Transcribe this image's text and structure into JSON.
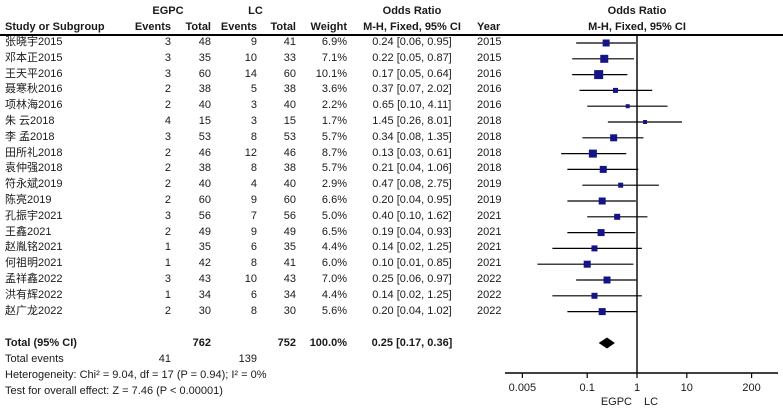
{
  "chart_data": {
    "type": "forest",
    "effect_measure": "Odds Ratio",
    "method": "M-H, Fixed, 95% CI",
    "groups": {
      "experimental": "EGPC",
      "control": "LC"
    },
    "headers": {
      "study": "Study or Subgroup",
      "events": "Events",
      "total": "Total",
      "weight": "Weight",
      "or_title": "Odds Ratio",
      "mh": "M-H, Fixed, 95% CI",
      "year": "Year"
    },
    "studies": [
      {
        "name": "张晓宇2015",
        "e1": "3",
        "t1": "48",
        "e2": "9",
        "t2": "41",
        "weight": "6.9%",
        "ci": "0.24 [0.06, 0.95]",
        "year": "2015",
        "or": 0.24,
        "lo": 0.06,
        "hi": 0.95,
        "w": 6.9
      },
      {
        "name": "邓本正2015",
        "e1": "3",
        "t1": "35",
        "e2": "10",
        "t2": "33",
        "weight": "7.1%",
        "ci": "0.22 [0.05, 0.87]",
        "year": "2015",
        "or": 0.22,
        "lo": 0.05,
        "hi": 0.87,
        "w": 7.1
      },
      {
        "name": "王天平2016",
        "e1": "3",
        "t1": "60",
        "e2": "14",
        "t2": "60",
        "weight": "10.1%",
        "ci": "0.17 [0.05, 0.64]",
        "year": "2016",
        "or": 0.17,
        "lo": 0.05,
        "hi": 0.64,
        "w": 10.1
      },
      {
        "name": "聂寒秋2016",
        "e1": "2",
        "t1": "38",
        "e2": "5",
        "t2": "38",
        "weight": "3.6%",
        "ci": "0.37 [0.07, 2.02]",
        "year": "2016",
        "or": 0.37,
        "lo": 0.07,
        "hi": 2.02,
        "w": 3.6
      },
      {
        "name": "项林海2016",
        "e1": "2",
        "t1": "40",
        "e2": "3",
        "t2": "40",
        "weight": "2.2%",
        "ci": "0.65 [0.10, 4.11]",
        "year": "2016",
        "or": 0.65,
        "lo": 0.1,
        "hi": 4.11,
        "w": 2.2
      },
      {
        "name": "朱 云2018",
        "e1": "4",
        "t1": "15",
        "e2": "3",
        "t2": "15",
        "weight": "1.7%",
        "ci": "1.45 [0.26, 8.01]",
        "year": "2018",
        "or": 1.45,
        "lo": 0.26,
        "hi": 8.01,
        "w": 1.7
      },
      {
        "name": "李 孟2018",
        "e1": "3",
        "t1": "53",
        "e2": "8",
        "t2": "53",
        "weight": "5.7%",
        "ci": "0.34 [0.08, 1.35]",
        "year": "2018",
        "or": 0.34,
        "lo": 0.08,
        "hi": 1.35,
        "w": 5.7
      },
      {
        "name": "田所礼2018",
        "e1": "2",
        "t1": "46",
        "e2": "12",
        "t2": "46",
        "weight": "8.7%",
        "ci": "0.13 [0.03, 0.61]",
        "year": "2018",
        "or": 0.13,
        "lo": 0.03,
        "hi": 0.61,
        "w": 8.7
      },
      {
        "name": "袁仲强2018",
        "e1": "2",
        "t1": "38",
        "e2": "8",
        "t2": "38",
        "weight": "5.7%",
        "ci": "0.21 [0.04, 1.06]",
        "year": "2018",
        "or": 0.21,
        "lo": 0.04,
        "hi": 1.06,
        "w": 5.7
      },
      {
        "name": "符永斌2019",
        "e1": "2",
        "t1": "40",
        "e2": "4",
        "t2": "40",
        "weight": "2.9%",
        "ci": "0.47 [0.08, 2.75]",
        "year": "2019",
        "or": 0.47,
        "lo": 0.08,
        "hi": 2.75,
        "w": 2.9
      },
      {
        "name": "陈亮2019",
        "e1": "2",
        "t1": "60",
        "e2": "9",
        "t2": "60",
        "weight": "6.6%",
        "ci": "0.20 [0.04, 0.95]",
        "year": "2019",
        "or": 0.2,
        "lo": 0.04,
        "hi": 0.95,
        "w": 6.6
      },
      {
        "name": "孔振宇2021",
        "e1": "3",
        "t1": "56",
        "e2": "7",
        "t2": "56",
        "weight": "5.0%",
        "ci": "0.40 [0.10, 1.62]",
        "year": "2021",
        "or": 0.4,
        "lo": 0.1,
        "hi": 1.62,
        "w": 5.0
      },
      {
        "name": "王鑫2021",
        "e1": "2",
        "t1": "49",
        "e2": "9",
        "t2": "49",
        "weight": "6.5%",
        "ci": "0.19 [0.04, 0.93]",
        "year": "2021",
        "or": 0.19,
        "lo": 0.04,
        "hi": 0.93,
        "w": 6.5
      },
      {
        "name": "赵胤铭2021",
        "e1": "1",
        "t1": "35",
        "e2": "6",
        "t2": "35",
        "weight": "4.4%",
        "ci": "0.14 [0.02, 1.25]",
        "year": "2021",
        "or": 0.14,
        "lo": 0.02,
        "hi": 1.25,
        "w": 4.4
      },
      {
        "name": "何祖明2021",
        "e1": "1",
        "t1": "42",
        "e2": "8",
        "t2": "41",
        "weight": "6.0%",
        "ci": "0.10 [0.01, 0.85]",
        "year": "2021",
        "or": 0.1,
        "lo": 0.01,
        "hi": 0.85,
        "w": 6.0
      },
      {
        "name": "孟祥鑫2022",
        "e1": "3",
        "t1": "43",
        "e2": "10",
        "t2": "43",
        "weight": "7.0%",
        "ci": "0.25 [0.06, 0.97]",
        "year": "2022",
        "or": 0.25,
        "lo": 0.06,
        "hi": 0.97,
        "w": 7.0
      },
      {
        "name": "洪有辉2022",
        "e1": "1",
        "t1": "34",
        "e2": "6",
        "t2": "34",
        "weight": "4.4%",
        "ci": "0.14 [0.02, 1.25]",
        "year": "2022",
        "or": 0.14,
        "lo": 0.02,
        "hi": 1.25,
        "w": 4.4
      },
      {
        "name": "赵广龙2022",
        "e1": "2",
        "t1": "30",
        "e2": "8",
        "t2": "30",
        "weight": "5.6%",
        "ci": "0.20 [0.04, 1.02]",
        "year": "2022",
        "or": 0.2,
        "lo": 0.04,
        "hi": 1.02,
        "w": 5.6
      }
    ],
    "total": {
      "label": "Total (95% CI)",
      "t1": "762",
      "t2": "752",
      "weight": "100.0%",
      "ci": "0.25 [0.17, 0.36]",
      "or": 0.25,
      "lo": 0.17,
      "hi": 0.36
    },
    "total_events": {
      "label": "Total events",
      "e1": "41",
      "e2": "139"
    },
    "heterogeneity": "Heterogeneity: Chi² = 9.04, df = 17 (P = 0.94); I² = 0%",
    "overall_effect": "Test for overall effect: Z = 7.46 (P < 0.00001)",
    "axis": {
      "scale": "log10",
      "ticks": [
        "0.005",
        "0.1",
        "1",
        "10",
        "200"
      ],
      "favours_left": "EGPC",
      "favours_right": "LC"
    },
    "colors": {
      "marker": "#141489",
      "ci_line": "#000000",
      "diamond": "#000000",
      "axis": "#000000"
    }
  }
}
